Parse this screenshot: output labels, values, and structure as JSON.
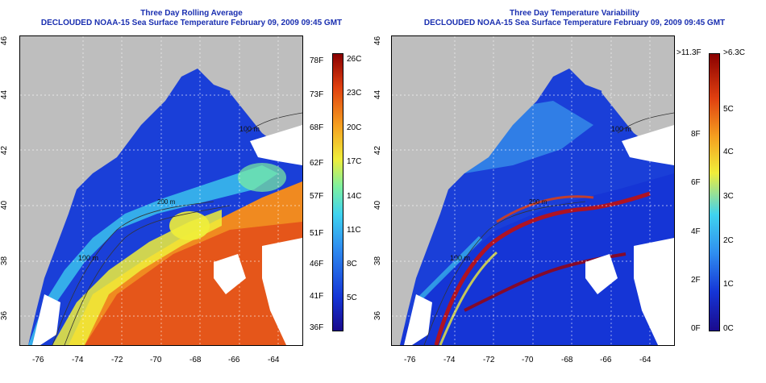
{
  "left_panel": {
    "title": "Three Day Rolling Average",
    "subtitle": "DECLOUDED NOAA-15 Sea Surface Temperature February 09, 2009 09:45 GMT",
    "colorbar_f": [
      "78F",
      "73F",
      "68F",
      "62F",
      "57F",
      "51F",
      "46F",
      "41F",
      "36F"
    ],
    "colorbar_c": [
      "26C",
      "23C",
      "20C",
      "17C",
      "14C",
      "11C",
      "8C",
      "5C"
    ]
  },
  "right_panel": {
    "title": "Three Day Temperature Variability",
    "subtitle": "DECLOUDED NOAA-15 Sea Surface Temperature February 09, 2009 09:45 GMT",
    "colorbar_f": [
      ">11.3F",
      "8F",
      "6F",
      "4F",
      "2F",
      "0F"
    ],
    "colorbar_c": [
      ">6.3C",
      "5C",
      "4C",
      "3C",
      "2C",
      "1C",
      "0C"
    ]
  },
  "axes": {
    "x_ticks": [
      "-76",
      "-74",
      "-72",
      "-70",
      "-68",
      "-66",
      "-64"
    ],
    "y_ticks": [
      "46",
      "44",
      "42",
      "40",
      "38",
      "36"
    ]
  },
  "contour_labels": [
    "100 m",
    "200 m"
  ],
  "colors": {
    "land": "#bebebe",
    "title": "#1a2fb0",
    "sst_scale": [
      "#1a0a8c",
      "#1535d6",
      "#2f8ef0",
      "#3fd3f0",
      "#7df0a0",
      "#f0ee3a",
      "#f5a020",
      "#e04010",
      "#8a0000"
    ]
  }
}
